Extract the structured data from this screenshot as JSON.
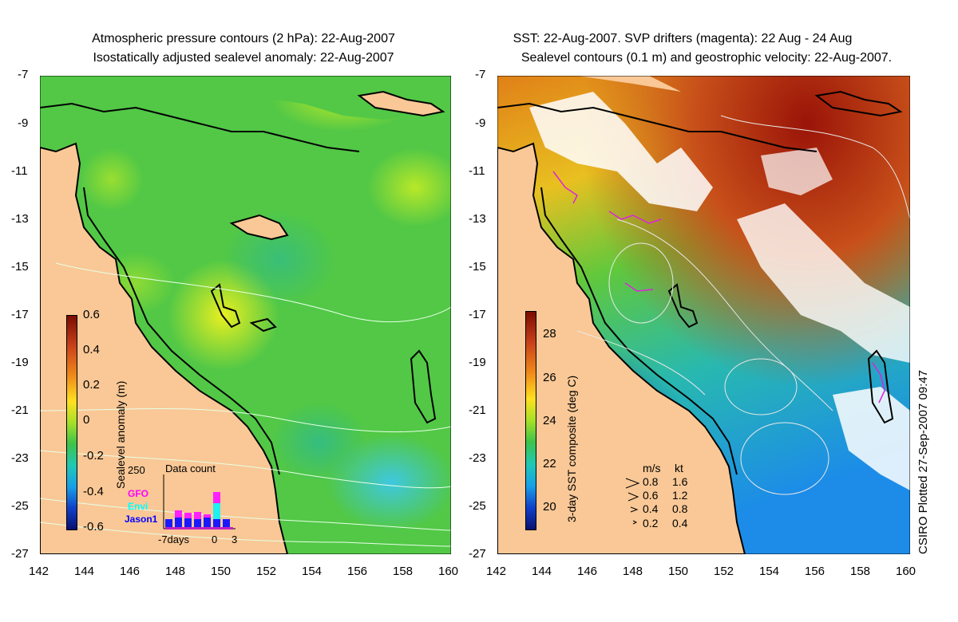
{
  "left_panel": {
    "title_line1": "Atmospheric pressure contours (2 hPa): 22-Aug-2007",
    "title_line2": "Isostatically adjusted sealevel anomaly: 22-Aug-2007",
    "colorbar": {
      "label": "Sealevel anomaly (m)",
      "ticks": [
        "0.6",
        "0.4",
        "0.2",
        "0",
        "-0.2",
        "-0.4",
        "-0.6"
      ]
    },
    "data_count": {
      "title": "Data count",
      "ymax": "250",
      "sources": [
        "GFO",
        "Envi",
        "Jason1"
      ],
      "xticks": [
        "-7days",
        "0",
        "3"
      ]
    }
  },
  "right_panel": {
    "title_line1": "SST: 22-Aug-2007. SVP drifters (magenta): 22 Aug - 24 Aug",
    "title_line2": "Sealevel contours (0.1 m) and geostrophic velocity: 22-Aug-2007.",
    "colorbar": {
      "label": "3-day SST composite (deg C)",
      "ticks": [
        "28",
        "26",
        "24",
        "22",
        "20"
      ]
    },
    "velocity_legend": {
      "header_ms": "m/s",
      "header_kt": "kt",
      "rows": [
        {
          "ms": "0.8",
          "kt": "1.6"
        },
        {
          "ms": "0.6",
          "kt": "1.2"
        },
        {
          "ms": "0.4",
          "kt": "0.8"
        },
        {
          "ms": "0.2",
          "kt": "0.4"
        }
      ]
    },
    "credit": "CSIRO Plotted 27-Sep-2007 09:47"
  },
  "axes": {
    "lat_ticks": [
      "-7",
      "-9",
      "-11",
      "-13",
      "-15",
      "-17",
      "-19",
      "-21",
      "-23",
      "-25",
      "-27"
    ],
    "lon_ticks": [
      "142",
      "144",
      "146",
      "148",
      "150",
      "152",
      "154",
      "156",
      "158",
      "160"
    ]
  },
  "colors": {
    "land": "#f9c896",
    "sea_green": "#4fc84a",
    "sst_warm": "#b42a10",
    "sst_cold": "#0a2b9a",
    "drifters": "#e020e0"
  }
}
